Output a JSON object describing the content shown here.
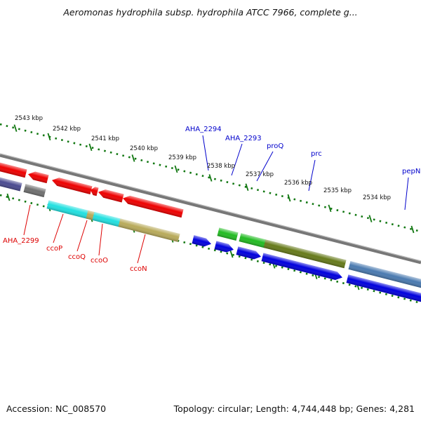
{
  "title": "Aeromonas hydrophila subsp. hydrophila ATCC 7966, complete g...",
  "footer": {
    "accession": "Accession: NC_008570",
    "summary": "Topology: circular; Length: 4,744,448 bp; Genes: 4,281"
  },
  "scale_labels": [
    "2543 kbp",
    "2542 kbp",
    "2541 kbp",
    "2540 kbp",
    "2539 kbp",
    "2538 kbp",
    "2537 kbp",
    "2536 kbp",
    "2535 kbp",
    "2534 kbp"
  ],
  "genes": [
    {
      "name": "AHA_2299",
      "strand": "reverse",
      "color": "#dd0000"
    },
    {
      "name": "ccoP",
      "strand": "reverse",
      "color": "#dd0000"
    },
    {
      "name": "ccoQ",
      "strand": "reverse",
      "color": "#dd0000"
    },
    {
      "name": "ccoO",
      "strand": "reverse",
      "color": "#dd0000"
    },
    {
      "name": "ccoN",
      "strand": "reverse",
      "color": "#dd0000"
    },
    {
      "name": "AHA_2294",
      "strand": "forward",
      "color": "#0000cc"
    },
    {
      "name": "AHA_2293",
      "strand": "forward",
      "color": "#0000cc"
    },
    {
      "name": "proQ",
      "strand": "forward",
      "color": "#0000cc"
    },
    {
      "name": "prc",
      "strand": "forward",
      "color": "#0000cc"
    },
    {
      "name": "pepN",
      "strand": "forward",
      "color": "#0000cc"
    }
  ],
  "colors": {
    "forward_label": "#0000cc",
    "reverse_label": "#dd0000",
    "tick": "#117711",
    "backbone": "#777777"
  }
}
